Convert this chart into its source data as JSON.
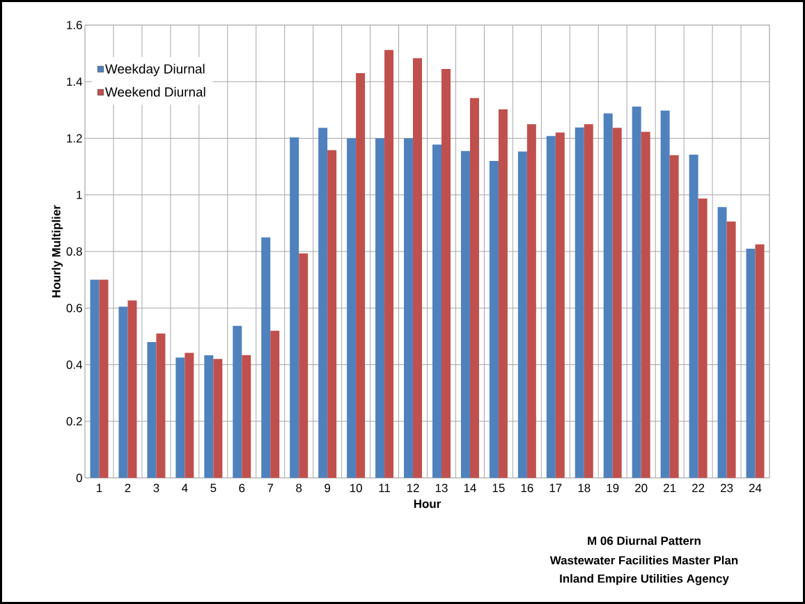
{
  "chart_data": {
    "type": "bar",
    "xlabel": "Hour",
    "ylabel": "Hourly Multiplier",
    "categories": [
      "1",
      "2",
      "3",
      "4",
      "5",
      "6",
      "7",
      "8",
      "9",
      "10",
      "11",
      "12",
      "13",
      "14",
      "15",
      "16",
      "17",
      "18",
      "19",
      "20",
      "21",
      "22",
      "23",
      "24"
    ],
    "series": [
      {
        "name": "Weekday Diurnal",
        "color": "#4f81bd",
        "values": [
          0.7,
          0.605,
          0.48,
          0.425,
          0.433,
          0.537,
          0.85,
          1.203,
          1.237,
          1.2,
          1.2,
          1.2,
          1.178,
          1.155,
          1.12,
          1.153,
          1.208,
          1.238,
          1.288,
          1.312,
          1.298,
          1.142,
          0.957,
          0.81
        ]
      },
      {
        "name": "Weekend Diurnal",
        "color": "#c0504d",
        "values": [
          0.7,
          0.627,
          0.51,
          0.442,
          0.42,
          0.434,
          0.52,
          0.793,
          1.158,
          1.43,
          1.512,
          1.483,
          1.445,
          1.342,
          1.302,
          1.25,
          1.22,
          1.25,
          1.237,
          1.223,
          1.14,
          0.987,
          0.906,
          0.825
        ]
      }
    ],
    "ylim": [
      0,
      1.6
    ],
    "yticks": [
      0,
      0.2,
      0.4,
      0.6,
      0.8,
      1,
      1.2,
      1.4,
      1.6
    ],
    "grid": true,
    "legend": "top left",
    "annotations": [
      "M 06 Diurnal Pattern",
      "Wastewater Facilities Master Plan",
      "Inland Empire Utilities Agency"
    ]
  }
}
